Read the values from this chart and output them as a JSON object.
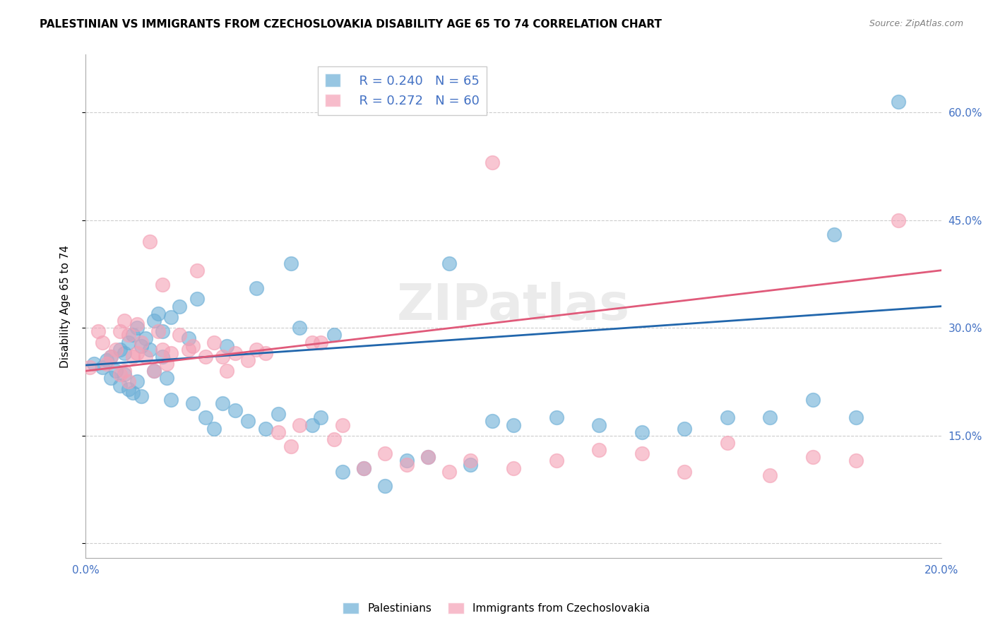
{
  "title": "PALESTINIAN VS IMMIGRANTS FROM CZECHOSLOVAKIA DISABILITY AGE 65 TO 74 CORRELATION CHART",
  "source": "Source: ZipAtlas.com",
  "ylabel": "Disability Age 65 to 74",
  "xlim": [
    0.0,
    0.2
  ],
  "ylim": [
    -0.02,
    0.68
  ],
  "yticks": [
    0.0,
    0.15,
    0.3,
    0.45,
    0.6
  ],
  "ytick_labels": [
    "",
    "15.0%",
    "30.0%",
    "45.0%",
    "60.0%"
  ],
  "xticks": [
    0.0,
    0.05,
    0.1,
    0.15,
    0.2
  ],
  "xtick_labels": [
    "0.0%",
    "",
    "",
    "",
    "20.0%"
  ],
  "legend_r_blue": "R = 0.240",
  "legend_n_blue": "N = 65",
  "legend_r_pink": "R = 0.272",
  "legend_n_pink": "N = 60",
  "blue_color": "#6baed6",
  "pink_color": "#f4a0b5",
  "line_blue_color": "#2166ac",
  "line_pink_color": "#e05a7a",
  "axis_label_color": "#4472c4",
  "watermark": "ZIPatlas",
  "blue_scatter_x": [
    0.002,
    0.004,
    0.005,
    0.006,
    0.006,
    0.007,
    0.008,
    0.008,
    0.009,
    0.009,
    0.01,
    0.01,
    0.011,
    0.011,
    0.012,
    0.012,
    0.013,
    0.013,
    0.014,
    0.015,
    0.016,
    0.016,
    0.017,
    0.018,
    0.018,
    0.019,
    0.02,
    0.02,
    0.022,
    0.024,
    0.025,
    0.026,
    0.028,
    0.03,
    0.032,
    0.033,
    0.035,
    0.038,
    0.04,
    0.042,
    0.045,
    0.048,
    0.05,
    0.053,
    0.055,
    0.058,
    0.06,
    0.065,
    0.07,
    0.075,
    0.08,
    0.085,
    0.09,
    0.095,
    0.1,
    0.11,
    0.12,
    0.13,
    0.14,
    0.15,
    0.16,
    0.17,
    0.175,
    0.18,
    0.19
  ],
  "blue_scatter_y": [
    0.25,
    0.245,
    0.255,
    0.23,
    0.26,
    0.24,
    0.22,
    0.27,
    0.235,
    0.265,
    0.28,
    0.215,
    0.29,
    0.21,
    0.3,
    0.225,
    0.275,
    0.205,
    0.285,
    0.27,
    0.31,
    0.24,
    0.32,
    0.26,
    0.295,
    0.23,
    0.315,
    0.2,
    0.33,
    0.285,
    0.195,
    0.34,
    0.175,
    0.16,
    0.195,
    0.275,
    0.185,
    0.17,
    0.355,
    0.16,
    0.18,
    0.39,
    0.3,
    0.165,
    0.175,
    0.29,
    0.1,
    0.105,
    0.08,
    0.115,
    0.12,
    0.39,
    0.11,
    0.17,
    0.165,
    0.175,
    0.165,
    0.155,
    0.16,
    0.175,
    0.175,
    0.2,
    0.43,
    0.175,
    0.615
  ],
  "pink_scatter_x": [
    0.001,
    0.003,
    0.004,
    0.005,
    0.006,
    0.007,
    0.008,
    0.008,
    0.009,
    0.009,
    0.01,
    0.01,
    0.011,
    0.012,
    0.012,
    0.013,
    0.014,
    0.015,
    0.016,
    0.017,
    0.018,
    0.018,
    0.019,
    0.02,
    0.022,
    0.024,
    0.025,
    0.026,
    0.028,
    0.03,
    0.032,
    0.033,
    0.035,
    0.038,
    0.04,
    0.042,
    0.045,
    0.048,
    0.05,
    0.053,
    0.055,
    0.058,
    0.06,
    0.065,
    0.07,
    0.075,
    0.08,
    0.085,
    0.09,
    0.095,
    0.1,
    0.11,
    0.12,
    0.13,
    0.14,
    0.15,
    0.16,
    0.17,
    0.18,
    0.19
  ],
  "pink_scatter_y": [
    0.245,
    0.295,
    0.28,
    0.25,
    0.26,
    0.27,
    0.295,
    0.235,
    0.31,
    0.24,
    0.29,
    0.225,
    0.26,
    0.305,
    0.265,
    0.28,
    0.26,
    0.42,
    0.24,
    0.295,
    0.27,
    0.36,
    0.25,
    0.265,
    0.29,
    0.27,
    0.275,
    0.38,
    0.26,
    0.28,
    0.26,
    0.24,
    0.265,
    0.255,
    0.27,
    0.265,
    0.155,
    0.135,
    0.165,
    0.28,
    0.28,
    0.145,
    0.165,
    0.105,
    0.125,
    0.11,
    0.12,
    0.1,
    0.115,
    0.53,
    0.105,
    0.115,
    0.13,
    0.125,
    0.1,
    0.14,
    0.095,
    0.12,
    0.115,
    0.45
  ],
  "blue_line_x": [
    0.0,
    0.2
  ],
  "blue_line_y": [
    0.248,
    0.33
  ],
  "pink_line_x": [
    0.0,
    0.2
  ],
  "pink_line_y": [
    0.24,
    0.38
  ],
  "bg_color": "#ffffff",
  "grid_color": "#cccccc",
  "title_fontsize": 11,
  "axis_fontsize": 11,
  "tick_fontsize": 11
}
